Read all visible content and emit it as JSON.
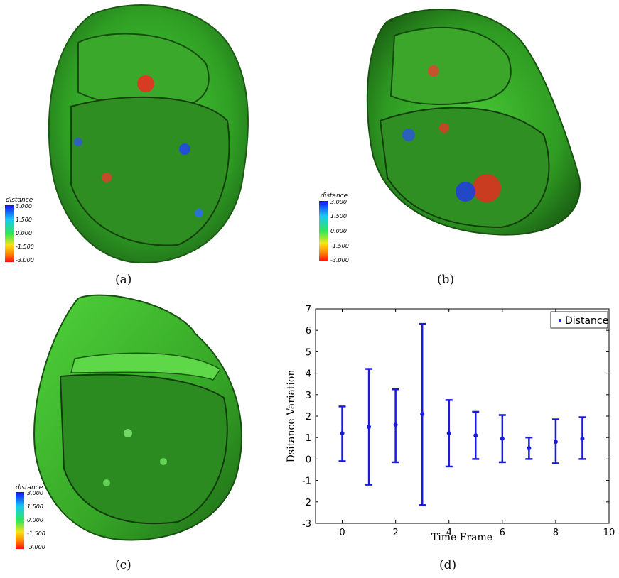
{
  "captions": {
    "a": "(a)",
    "b": "(b)",
    "c": "(c)",
    "d": "(d)"
  },
  "colorbar": {
    "title": "distance",
    "ticks": [
      "3.000",
      "1.500",
      "0.000",
      "-1.500",
      "-3.000"
    ]
  },
  "colors": {
    "mesh_green": "#3bbf2a",
    "errorbar_blue": "#1a1adf"
  },
  "chart_data": {
    "type": "scatter",
    "title": "",
    "xlabel": "Time Frame",
    "ylabel": "Dsitance Variation",
    "xlim": [
      -1,
      10
    ],
    "ylim": [
      -3,
      7
    ],
    "xticks": [
      "0",
      "2",
      "4",
      "6",
      "8",
      "10"
    ],
    "yticks": [
      "-3",
      "-2",
      "-1",
      "0",
      "1",
      "2",
      "3",
      "4",
      "5",
      "6",
      "7"
    ],
    "legend": {
      "position": "top-right",
      "entries": [
        "Distance"
      ]
    },
    "grid": false,
    "series": [
      {
        "name": "Distance",
        "x": [
          0,
          1,
          2,
          3,
          4,
          5,
          6,
          7,
          8,
          9
        ],
        "y": [
          1.2,
          1.5,
          1.6,
          2.1,
          1.2,
          1.1,
          0.95,
          0.5,
          0.8,
          0.95
        ],
        "err_low": [
          -0.1,
          -1.2,
          -0.15,
          -2.15,
          -0.35,
          0.0,
          -0.15,
          0.0,
          -0.2,
          0.0
        ],
        "err_high": [
          2.45,
          4.2,
          3.25,
          6.3,
          2.75,
          2.2,
          2.05,
          1.0,
          1.85,
          1.95
        ]
      }
    ]
  }
}
